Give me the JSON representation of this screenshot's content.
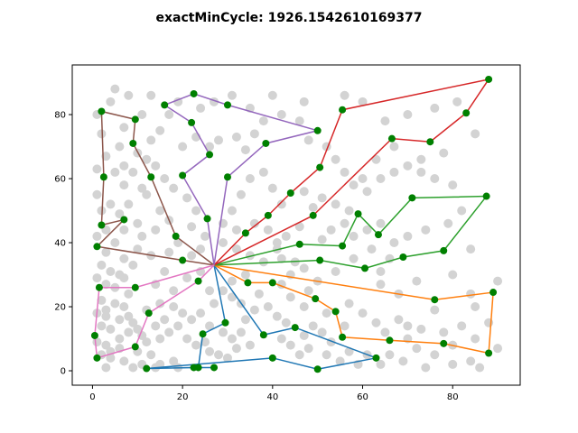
{
  "chart_data": {
    "type": "scatter",
    "title": "exactMinCycle: 1926.1542610169377",
    "xlabel": "",
    "ylabel": "",
    "xlim": [
      -4.5,
      95
    ],
    "ylim": [
      -4.5,
      95.5
    ],
    "x_ticks": [
      0,
      20,
      40,
      60,
      80
    ],
    "y_ticks": [
      0,
      20,
      40,
      60,
      80
    ],
    "grid": false,
    "depot": {
      "x": 27,
      "y": 33
    },
    "colors": {
      "background_points": "#d3d3d3",
      "route_nodes": "#008000",
      "routes": [
        "#1f77b4",
        "#ff7f0e",
        "#2ca02c",
        "#d62728",
        "#9467bd",
        "#8c564b",
        "#e377c2"
      ]
    },
    "routes": [
      {
        "color": "#1f77b4",
        "points": [
          [
            27,
            33
          ],
          [
            29.5,
            15
          ],
          [
            24.5,
            11.5
          ],
          [
            23.5,
            1
          ],
          [
            27,
            1
          ],
          [
            22.5,
            1
          ],
          [
            12,
            0.7
          ],
          [
            40,
            4
          ],
          [
            50,
            0.5
          ],
          [
            63,
            4
          ],
          [
            45,
            13.5
          ],
          [
            38,
            11.2
          ],
          [
            27,
            33
          ]
        ]
      },
      {
        "color": "#ff7f0e",
        "points": [
          [
            27,
            33
          ],
          [
            34.5,
            27.5
          ],
          [
            40,
            27.5
          ],
          [
            49.5,
            22.5
          ],
          [
            54,
            18.5
          ],
          [
            55.5,
            10.5
          ],
          [
            66,
            9.5
          ],
          [
            78,
            8.5
          ],
          [
            88,
            5.5
          ],
          [
            89,
            24.5
          ],
          [
            76,
            22.2
          ],
          [
            27,
            33
          ]
        ]
      },
      {
        "color": "#2ca02c",
        "points": [
          [
            27,
            33
          ],
          [
            46,
            39.5
          ],
          [
            55.5,
            39
          ],
          [
            59,
            49
          ],
          [
            63.5,
            42.5
          ],
          [
            71,
            54
          ],
          [
            87.5,
            54.5
          ],
          [
            78,
            37.5
          ],
          [
            69,
            35.5
          ],
          [
            60.5,
            32
          ],
          [
            50.5,
            34.5
          ],
          [
            27,
            33
          ]
        ]
      },
      {
        "color": "#d62728",
        "points": [
          [
            27,
            33
          ],
          [
            34,
            43
          ],
          [
            39,
            48.5
          ],
          [
            44,
            55.5
          ],
          [
            50.5,
            63.5
          ],
          [
            55.5,
            81.5
          ],
          [
            88,
            91
          ],
          [
            83,
            80.5
          ],
          [
            75,
            71.5
          ],
          [
            66.5,
            72.5
          ],
          [
            49,
            48.5
          ],
          [
            27,
            33
          ]
        ]
      },
      {
        "color": "#9467bd",
        "points": [
          [
            27,
            33
          ],
          [
            30,
            60.5
          ],
          [
            38.5,
            71
          ],
          [
            50,
            75
          ],
          [
            30,
            83
          ],
          [
            22.5,
            86.5
          ],
          [
            16,
            83
          ],
          [
            22,
            77.5
          ],
          [
            26,
            67.5
          ],
          [
            20,
            61
          ],
          [
            25.5,
            47.5
          ],
          [
            27,
            33
          ]
        ]
      },
      {
        "color": "#8c564b",
        "points": [
          [
            27,
            33
          ],
          [
            18.5,
            42
          ],
          [
            13,
            60.5
          ],
          [
            9,
            71
          ],
          [
            9.5,
            78.5
          ],
          [
            2,
            81
          ],
          [
            2.5,
            60.5
          ],
          [
            2,
            45.5
          ],
          [
            7,
            47.2
          ],
          [
            1,
            38.8
          ],
          [
            20,
            34.5
          ],
          [
            27,
            33
          ]
        ]
      },
      {
        "color": "#e377c2",
        "points": [
          [
            27,
            33
          ],
          [
            9.5,
            26
          ],
          [
            1.5,
            26
          ],
          [
            0.5,
            11
          ],
          [
            1,
            4
          ],
          [
            9.5,
            7.5
          ],
          [
            12.5,
            18
          ],
          [
            23.5,
            28
          ],
          [
            27,
            33
          ]
        ]
      }
    ],
    "background_points": [
      [
        1,
        80
      ],
      [
        4,
        84
      ],
      [
        2,
        74
      ],
      [
        3,
        67
      ],
      [
        1,
        63
      ],
      [
        5,
        62
      ],
      [
        7,
        58
      ],
      [
        1,
        55
      ],
      [
        4,
        52
      ],
      [
        2,
        50
      ],
      [
        6,
        49
      ],
      [
        3,
        44
      ],
      [
        1,
        42
      ],
      [
        5,
        40
      ],
      [
        3,
        37
      ],
      [
        7,
        35
      ],
      [
        2,
        33
      ],
      [
        4,
        31
      ],
      [
        6,
        30
      ],
      [
        1,
        29
      ],
      [
        3,
        27
      ],
      [
        8,
        24
      ],
      [
        2,
        22
      ],
      [
        5,
        21
      ],
      [
        7,
        20
      ],
      [
        1,
        18
      ],
      [
        3,
        17
      ],
      [
        6,
        16
      ],
      [
        9,
        15
      ],
      [
        2,
        14
      ],
      [
        4,
        13
      ],
      [
        8,
        12
      ],
      [
        11,
        11
      ],
      [
        1,
        9
      ],
      [
        3,
        8
      ],
      [
        6,
        7
      ],
      [
        10,
        6
      ],
      [
        13,
        5
      ],
      [
        2,
        5
      ],
      [
        4,
        4
      ],
      [
        7,
        3
      ],
      [
        11,
        2
      ],
      [
        15,
        2
      ],
      [
        18,
        3
      ],
      [
        3,
        1
      ],
      [
        9,
        1
      ],
      [
        14,
        1
      ],
      [
        19,
        1
      ],
      [
        12,
        9
      ],
      [
        15,
        10
      ],
      [
        17,
        12
      ],
      [
        14,
        14
      ],
      [
        16,
        16
      ],
      [
        12,
        19
      ],
      [
        15,
        21
      ],
      [
        18,
        20
      ],
      [
        20,
        18
      ],
      [
        22,
        16
      ],
      [
        19,
        14
      ],
      [
        21,
        10
      ],
      [
        23,
        8
      ],
      [
        25,
        9
      ],
      [
        26,
        6
      ],
      [
        28,
        5
      ],
      [
        30,
        4
      ],
      [
        32,
        7
      ],
      [
        31,
        10
      ],
      [
        33,
        12
      ],
      [
        35,
        8
      ],
      [
        34,
        16
      ],
      [
        36,
        19
      ],
      [
        33,
        21
      ],
      [
        31,
        23
      ],
      [
        29,
        25
      ],
      [
        31,
        28
      ],
      [
        34,
        30
      ],
      [
        37,
        24
      ],
      [
        39,
        20
      ],
      [
        41,
        17
      ],
      [
        43,
        15
      ],
      [
        42,
        10
      ],
      [
        44,
        8
      ],
      [
        46,
        5
      ],
      [
        48,
        7
      ],
      [
        47,
        11
      ],
      [
        49,
        14
      ],
      [
        51,
        12
      ],
      [
        53,
        9
      ],
      [
        52,
        5
      ],
      [
        55,
        3
      ],
      [
        57,
        6
      ],
      [
        59,
        2
      ],
      [
        61,
        5
      ],
      [
        64,
        2
      ],
      [
        66,
        5
      ],
      [
        69,
        3
      ],
      [
        72,
        7
      ],
      [
        76,
        5
      ],
      [
        80,
        8
      ],
      [
        84,
        3
      ],
      [
        86,
        1
      ],
      [
        90,
        7
      ],
      [
        85,
        10
      ],
      [
        88,
        15
      ],
      [
        85,
        20
      ],
      [
        90,
        28
      ],
      [
        84,
        38
      ],
      [
        76,
        19
      ],
      [
        70,
        14
      ],
      [
        63,
        15
      ],
      [
        60,
        18
      ],
      [
        57,
        21
      ],
      [
        56,
        14
      ],
      [
        52,
        18
      ],
      [
        47,
        20
      ],
      [
        44,
        23
      ],
      [
        42,
        27
      ],
      [
        44,
        30
      ],
      [
        47,
        32
      ],
      [
        42,
        35
      ],
      [
        38,
        34
      ],
      [
        35,
        36
      ],
      [
        32,
        38
      ],
      [
        29,
        40
      ],
      [
        25,
        42
      ],
      [
        22,
        45
      ],
      [
        23,
        50
      ],
      [
        21,
        54
      ],
      [
        18,
        57
      ],
      [
        16,
        60
      ],
      [
        14,
        64
      ],
      [
        12,
        66
      ],
      [
        10,
        68
      ],
      [
        13,
        72
      ],
      [
        15,
        75
      ],
      [
        11,
        80
      ],
      [
        7,
        76
      ],
      [
        6,
        70
      ],
      [
        9,
        62
      ],
      [
        12,
        55
      ],
      [
        15,
        50
      ],
      [
        17,
        47
      ],
      [
        14,
        44
      ],
      [
        11,
        42
      ],
      [
        10,
        38
      ],
      [
        13,
        36
      ],
      [
        16,
        31
      ],
      [
        14,
        27
      ],
      [
        18,
        25
      ],
      [
        21,
        29
      ],
      [
        24,
        31
      ],
      [
        26,
        25
      ],
      [
        27,
        21
      ],
      [
        24,
        18
      ],
      [
        26,
        14
      ],
      [
        29,
        12
      ],
      [
        22,
        36
      ],
      [
        24,
        38
      ],
      [
        19,
        40
      ],
      [
        17,
        37
      ],
      [
        9,
        33
      ],
      [
        7,
        29
      ],
      [
        5,
        26
      ],
      [
        3,
        19
      ],
      [
        8,
        17
      ],
      [
        10,
        13
      ],
      [
        6,
        10
      ],
      [
        4,
        6
      ],
      [
        7,
        44
      ],
      [
        10,
        46
      ],
      [
        8,
        52
      ],
      [
        11,
        57
      ],
      [
        7,
        64
      ],
      [
        20,
        70
      ],
      [
        23,
        73
      ],
      [
        26,
        70
      ],
      [
        28,
        72
      ],
      [
        32,
        73
      ],
      [
        34,
        69
      ],
      [
        36,
        74
      ],
      [
        38,
        78
      ],
      [
        42,
        80
      ],
      [
        46,
        78
      ],
      [
        48,
        72
      ],
      [
        52,
        70
      ],
      [
        54,
        66
      ],
      [
        56,
        62
      ],
      [
        58,
        58
      ],
      [
        61,
        56
      ],
      [
        64,
        60
      ],
      [
        67,
        62
      ],
      [
        70,
        64
      ],
      [
        73,
        62
      ],
      [
        76,
        60
      ],
      [
        80,
        58
      ],
      [
        82,
        50
      ],
      [
        79,
        46
      ],
      [
        74,
        44
      ],
      [
        70,
        42
      ],
      [
        67,
        40
      ],
      [
        64,
        46
      ],
      [
        61,
        44
      ],
      [
        58,
        42
      ],
      [
        62,
        38
      ],
      [
        66,
        35
      ],
      [
        64,
        31
      ],
      [
        58,
        35
      ],
      [
        54,
        31
      ],
      [
        50,
        28
      ],
      [
        48,
        25
      ],
      [
        45,
        34
      ],
      [
        41,
        38
      ],
      [
        43,
        42
      ],
      [
        46,
        45
      ],
      [
        49,
        51
      ],
      [
        47,
        56
      ],
      [
        42,
        52
      ],
      [
        40,
        57
      ],
      [
        38,
        62
      ],
      [
        35,
        60
      ],
      [
        33,
        55
      ],
      [
        31,
        50
      ],
      [
        29,
        46
      ],
      [
        32,
        44
      ],
      [
        36,
        46
      ],
      [
        39,
        44
      ],
      [
        41,
        40
      ],
      [
        51,
        41
      ],
      [
        53,
        44
      ],
      [
        56,
        46
      ],
      [
        57,
        50
      ],
      [
        54,
        52
      ],
      [
        51,
        54
      ],
      [
        60,
        60
      ],
      [
        63,
        66
      ],
      [
        67,
        70
      ],
      [
        73,
        66
      ],
      [
        78,
        68
      ],
      [
        85,
        74
      ],
      [
        81,
        84
      ],
      [
        76,
        82
      ],
      [
        70,
        80
      ],
      [
        65,
        78
      ],
      [
        60,
        84
      ],
      [
        56,
        86
      ],
      [
        47,
        84
      ],
      [
        40,
        86
      ],
      [
        35,
        82
      ],
      [
        31,
        86
      ],
      [
        27,
        84
      ],
      [
        24,
        82
      ],
      [
        19,
        84
      ],
      [
        17,
        80
      ],
      [
        13,
        86
      ],
      [
        8,
        86
      ],
      [
        5,
        88
      ],
      [
        68,
        16
      ],
      [
        65,
        12
      ],
      [
        70,
        10
      ],
      [
        73,
        13
      ],
      [
        78,
        12
      ],
      [
        82,
        14
      ],
      [
        80,
        2
      ],
      [
        74,
        1
      ],
      [
        84,
        24
      ],
      [
        80,
        30
      ],
      [
        72,
        28
      ],
      [
        68,
        24
      ],
      [
        64,
        27
      ]
    ]
  }
}
